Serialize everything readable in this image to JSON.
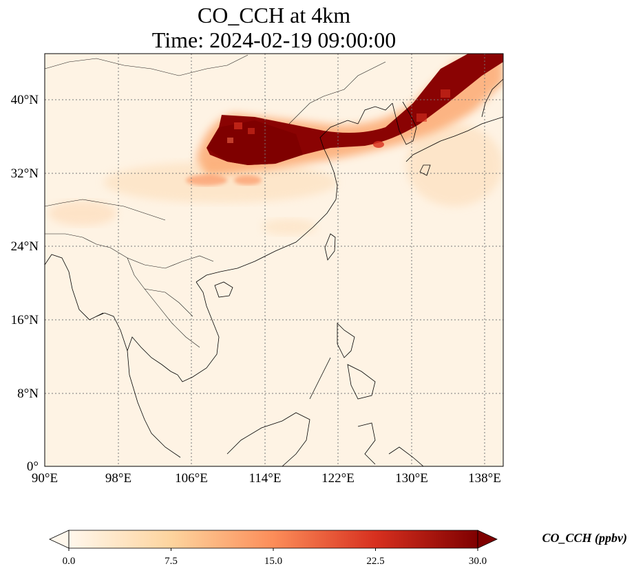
{
  "title_line1": "CO_CCH at 4km",
  "title_line2": "Time: 2024-02-19 09:00:00",
  "map": {
    "lon_range": [
      90,
      140
    ],
    "lat_range": [
      0,
      45
    ],
    "lon_ticks": [
      "90°E",
      "98°E",
      "106°E",
      "114°E",
      "122°E",
      "130°E",
      "138°E"
    ],
    "lon_tick_values": [
      90,
      98,
      106,
      114,
      122,
      130,
      138
    ],
    "lat_ticks": [
      "0°",
      "8°N",
      "16°N",
      "24°N",
      "32°N",
      "40°N"
    ],
    "lat_tick_values": [
      0,
      8,
      16,
      24,
      32,
      40
    ],
    "gridlines": true,
    "colormap": "OrRd",
    "plume": "High CO concentration band from central-eastern China (~108–120°E, 34–38°N) extending east over Korea and Japan to the northeast corner"
  },
  "colorbar": {
    "label": "CO_CCH (ppbv)",
    "ticks": [
      "0.0",
      "7.5",
      "15.0",
      "22.5",
      "30.0"
    ],
    "tick_values": [
      0,
      7.5,
      15,
      22.5,
      30
    ],
    "range": [
      0,
      30
    ],
    "extend": "both",
    "colors": [
      "#fff7ec",
      "#fdd49e",
      "#fc8d59",
      "#d7301f",
      "#7f0000"
    ]
  }
}
